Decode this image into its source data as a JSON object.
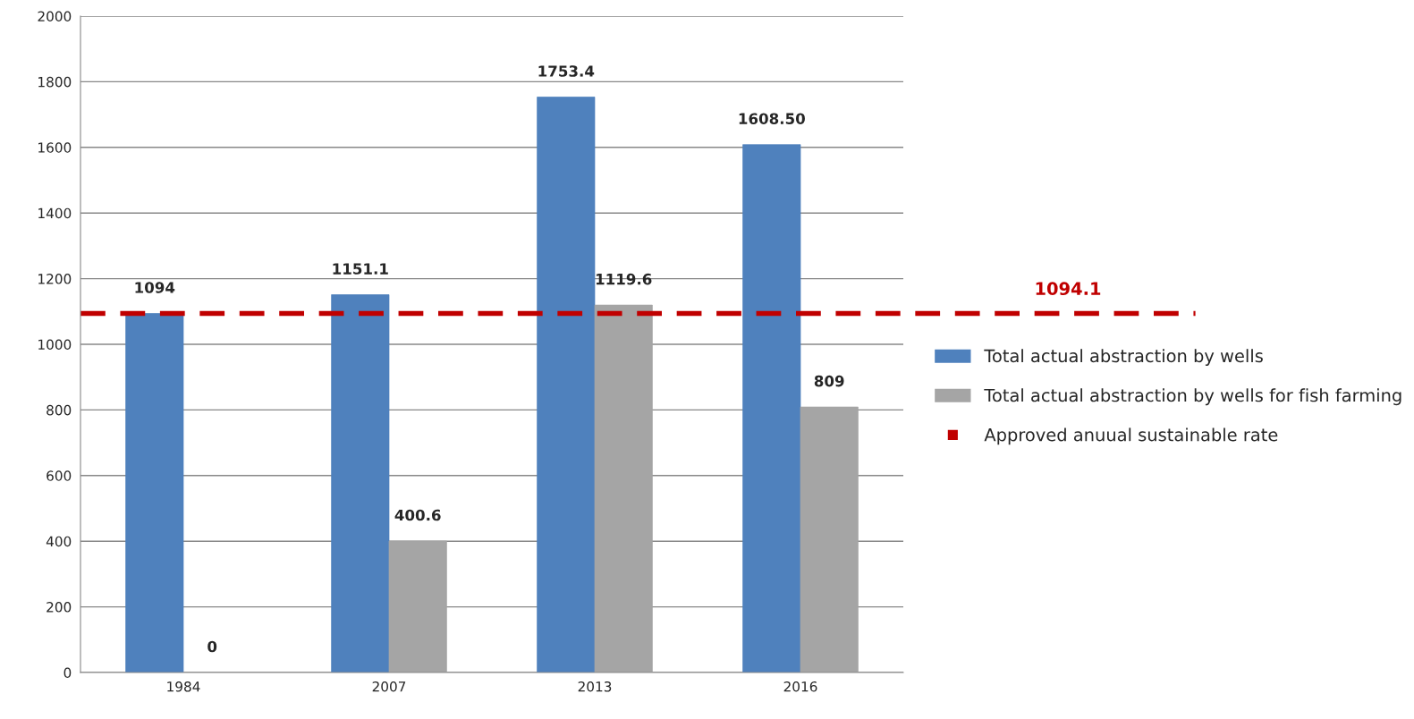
{
  "chart_data": {
    "type": "bar",
    "categories": [
      "1984",
      "2007",
      "2013",
      "2016"
    ],
    "series": [
      {
        "name": "Total actual abstraction by wells",
        "color": "#4f81bd",
        "values": [
          1094,
          1151.1,
          1753.4,
          1608.5
        ],
        "value_labels": [
          "1094",
          "1151.1",
          "1753.4",
          "1608.50"
        ]
      },
      {
        "name": "Total actual abstraction by wells for fish farming",
        "color": "#a5a5a5",
        "values": [
          0,
          400.6,
          1119.6,
          809
        ],
        "value_labels": [
          "0",
          "400.6",
          "1119.6",
          "809"
        ]
      }
    ],
    "ref_lines": [
      {
        "axis": "y",
        "value": 1094.1,
        "label": "Approved anuual sustainable rate",
        "color": "#c00000",
        "line_style": "dashed"
      }
    ],
    "annotations": [
      {
        "text": "1094.1",
        "y": 1094.1
      }
    ],
    "ylim": [
      0,
      2000
    ],
    "yticks": [
      0,
      200,
      400,
      600,
      800,
      1000,
      1200,
      1400,
      1600,
      1800,
      2000
    ],
    "grid": "y",
    "legend": "right"
  }
}
